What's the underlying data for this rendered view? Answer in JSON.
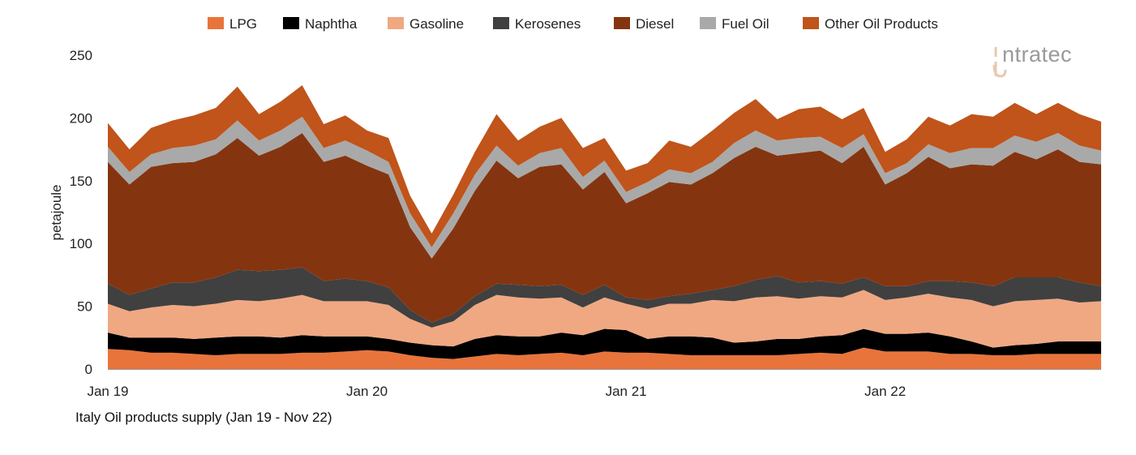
{
  "chart_data": {
    "type": "area",
    "stacked": true,
    "title": "Italy Oil products supply (Jan 19 - Nov 22)",
    "ylabel": "petajoule",
    "xlabel": "",
    "ylim": [
      0,
      250
    ],
    "yticks": [
      0,
      50,
      100,
      150,
      200,
      250
    ],
    "x_tick_labels": [
      "Jan 19",
      "Jan 20",
      "Jan 21",
      "Jan 22"
    ],
    "x_start": "2019-01",
    "x_end": "2022-11",
    "legend_position": "top",
    "grid": false,
    "series": [
      {
        "name": "LPG",
        "color": "#E8743B",
        "values": [
          16,
          15,
          13,
          13,
          12,
          11,
          12,
          12,
          12,
          13,
          13,
          14,
          15,
          14,
          11,
          9,
          8,
          10,
          12,
          11,
          12,
          13,
          11,
          14,
          13,
          13,
          12,
          11,
          11,
          11,
          11,
          11,
          12,
          13,
          12,
          17,
          14,
          14,
          14,
          12,
          12,
          11,
          11,
          12,
          12,
          12,
          12
        ]
      },
      {
        "name": "Naphtha",
        "color": "#000000",
        "values": [
          13,
          10,
          12,
          12,
          12,
          14,
          14,
          14,
          13,
          14,
          13,
          12,
          11,
          10,
          10,
          10,
          10,
          14,
          15,
          15,
          14,
          16,
          16,
          18,
          18,
          11,
          14,
          15,
          14,
          10,
          11,
          13,
          12,
          13,
          15,
          15,
          14,
          14,
          15,
          14,
          10,
          6,
          8,
          8,
          10,
          10,
          10
        ]
      },
      {
        "name": "Gasoline",
        "color": "#F0A882",
        "values": [
          23,
          21,
          24,
          26,
          26,
          27,
          29,
          28,
          31,
          32,
          28,
          28,
          28,
          27,
          19,
          14,
          20,
          27,
          32,
          31,
          30,
          28,
          22,
          25,
          21,
          24,
          26,
          26,
          30,
          33,
          35,
          34,
          32,
          32,
          30,
          31,
          27,
          29,
          31,
          31,
          33,
          33,
          35,
          35,
          34,
          31,
          32
        ]
      },
      {
        "name": "Kerosenes",
        "color": "#404040",
        "values": [
          16,
          13,
          15,
          18,
          19,
          21,
          24,
          24,
          23,
          22,
          16,
          18,
          16,
          14,
          7,
          4,
          6,
          7,
          9,
          10,
          10,
          10,
          10,
          10,
          5,
          7,
          6,
          8,
          8,
          12,
          14,
          16,
          13,
          12,
          11,
          10,
          11,
          9,
          10,
          13,
          14,
          16,
          19,
          18,
          17,
          16,
          12
        ]
      },
      {
        "name": "Diesel",
        "color": "#843510",
        "values": [
          97,
          88,
          97,
          95,
          96,
          98,
          105,
          92,
          98,
          107,
          95,
          98,
          92,
          90,
          66,
          51,
          68,
          84,
          98,
          85,
          95,
          96,
          84,
          90,
          75,
          85,
          91,
          87,
          93,
          102,
          106,
          96,
          103,
          104,
          96,
          104,
          81,
          90,
          99,
          90,
          94,
          96,
          100,
          94,
          102,
          96,
          97
        ]
      },
      {
        "name": "Fuel Oil",
        "color": "#A9A9A9",
        "values": [
          12,
          10,
          10,
          12,
          13,
          12,
          14,
          12,
          13,
          13,
          11,
          12,
          12,
          10,
          11,
          9,
          12,
          13,
          12,
          10,
          11,
          13,
          10,
          9,
          9,
          9,
          10,
          9,
          9,
          12,
          13,
          12,
          12,
          11,
          12,
          10,
          9,
          8,
          10,
          12,
          13,
          14,
          13,
          14,
          13,
          13,
          11
        ]
      },
      {
        "name": "Other Oil Products",
        "color": "#C0541A",
        "values": [
          19,
          18,
          21,
          22,
          24,
          25,
          27,
          21,
          23,
          25,
          19,
          20,
          16,
          19,
          14,
          11,
          15,
          18,
          25,
          20,
          21,
          24,
          23,
          18,
          17,
          15,
          23,
          21,
          25,
          24,
          25,
          17,
          23,
          24,
          23,
          21,
          17,
          19,
          22,
          22,
          27,
          25,
          26,
          22,
          24,
          25,
          23
        ]
      }
    ]
  },
  "logo": {
    "text": "intratec",
    "color": "#9A9A9A",
    "accent": "#E8C9AE"
  }
}
